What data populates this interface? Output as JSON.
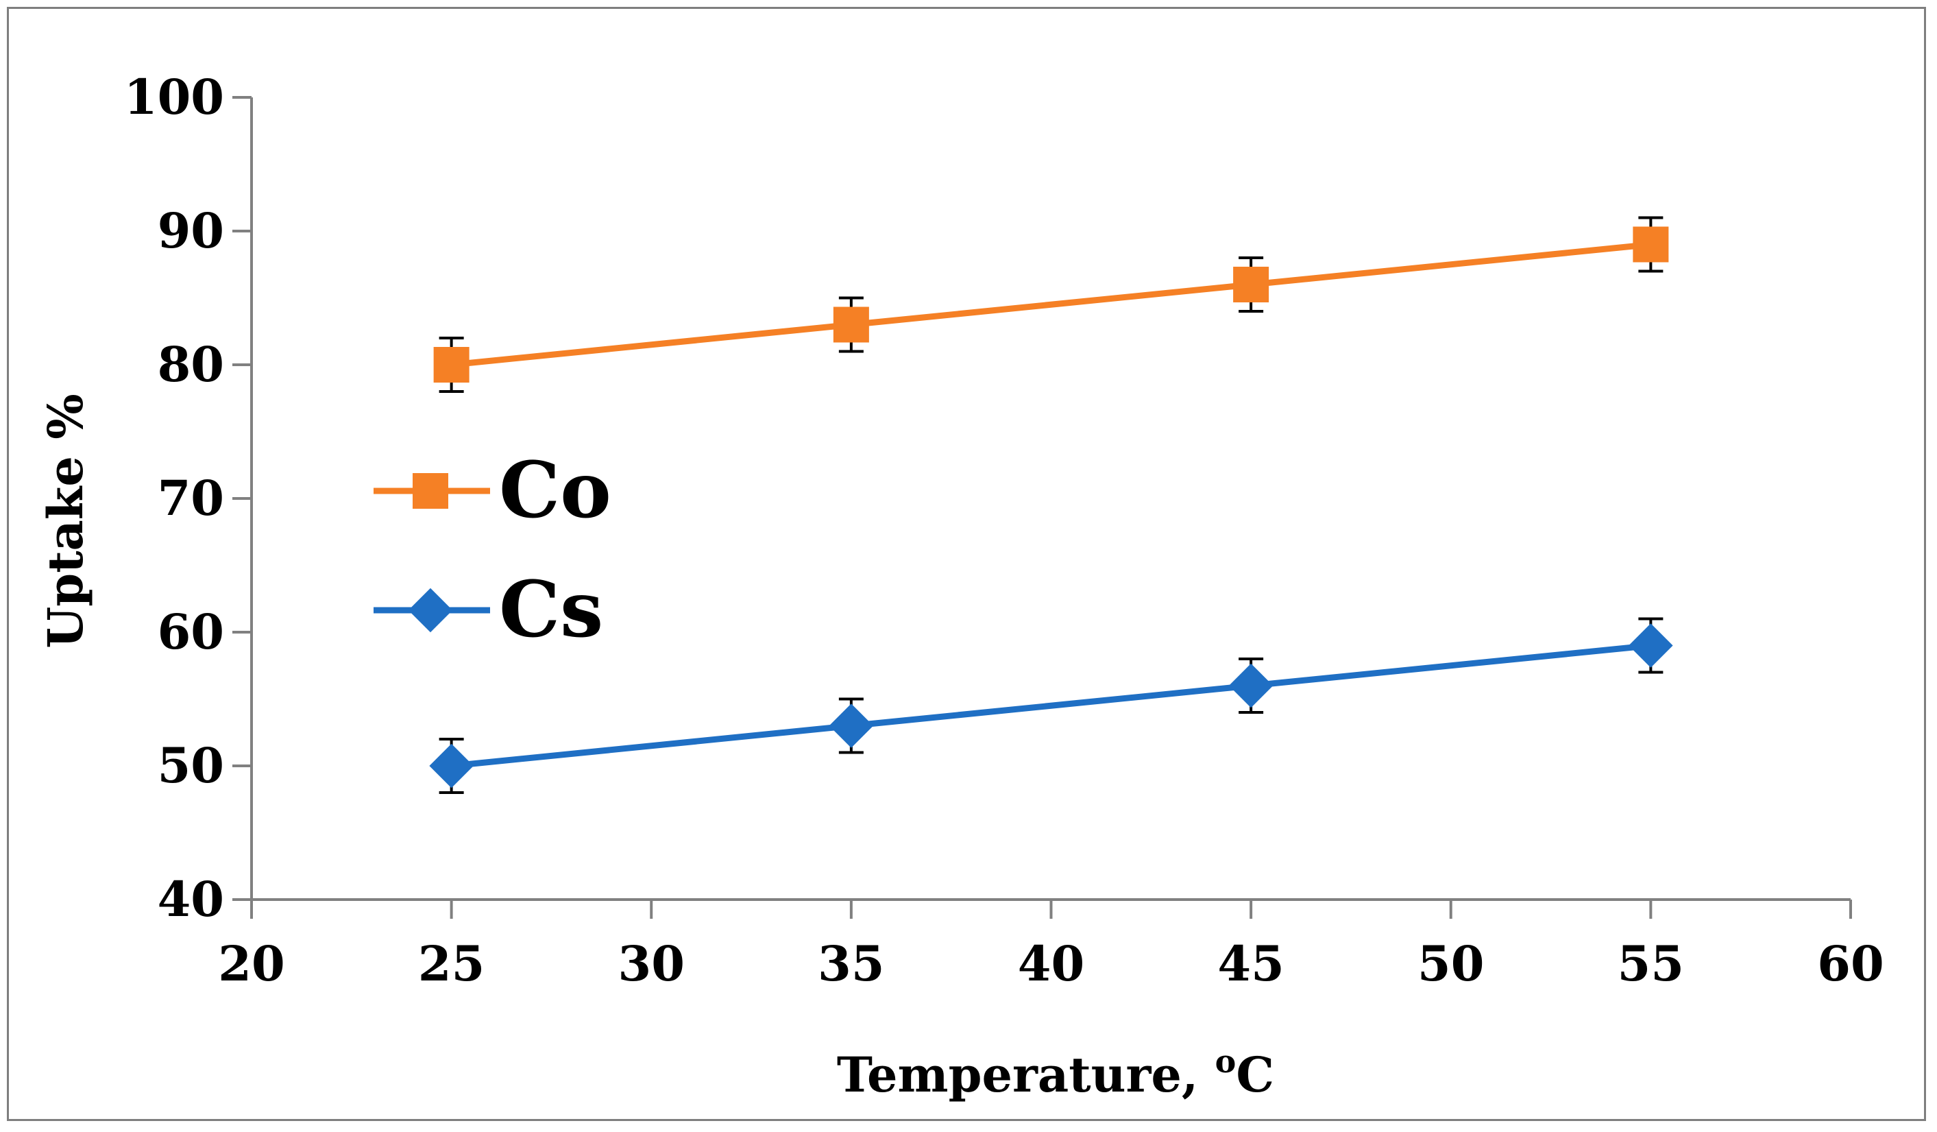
{
  "chart_data": {
    "type": "line",
    "title": "",
    "xlabel": "Temperature, ",
    "xlabel_superscript": "o",
    "xlabel_unit": "C",
    "ylabel": "Uptake %",
    "xlim": [
      20,
      60
    ],
    "ylim": [
      40,
      100
    ],
    "x_ticks": [
      20,
      25,
      30,
      35,
      40,
      45,
      50,
      55,
      60
    ],
    "y_ticks": [
      40,
      50,
      60,
      70,
      80,
      90,
      100
    ],
    "grid": false,
    "legend_position": "left-center",
    "series": [
      {
        "name": "Co",
        "color": "#F58025",
        "marker": "square",
        "x": [
          25,
          35,
          45,
          55
        ],
        "y": [
          80,
          83,
          86,
          89
        ],
        "error": [
          2,
          2,
          2,
          2
        ]
      },
      {
        "name": "Cs",
        "color": "#1F6FC4",
        "marker": "diamond",
        "x": [
          25,
          35,
          45,
          55
        ],
        "y": [
          50,
          53,
          56,
          59
        ],
        "error": [
          2,
          2,
          2,
          2
        ]
      }
    ]
  }
}
